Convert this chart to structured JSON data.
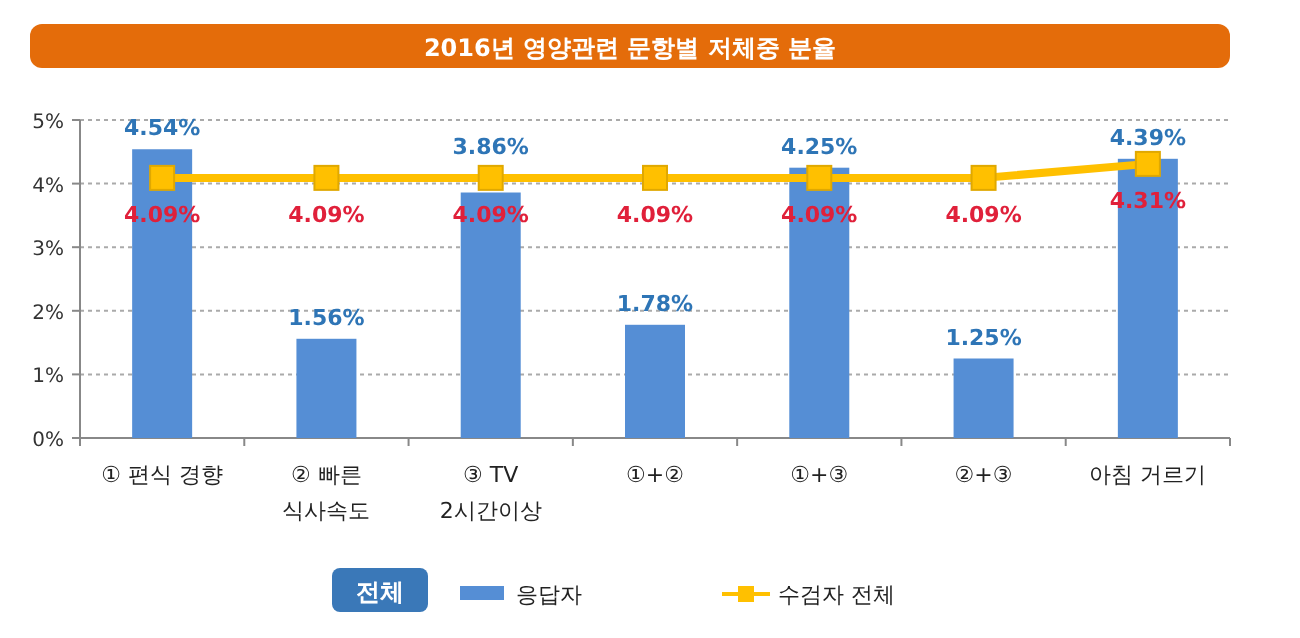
{
  "chart_data": {
    "type": "bar",
    "title": "2016년 영양관련 문항별 저체중 분율",
    "legend_title": "전체",
    "categories": [
      "① 편식 경향",
      "② 빠른\n식사속도",
      "③ TV\n2시간이상",
      "①+②",
      "①+③",
      "②+③",
      "아침 거르기"
    ],
    "series": [
      {
        "name": "응답자",
        "color": "#558ed5",
        "values": [
          4.54,
          1.56,
          3.86,
          1.78,
          4.25,
          1.25,
          4.39
        ],
        "value_labels": [
          "4.54%",
          "1.56%",
          "3.86%",
          "1.78%",
          "4.25%",
          "1.25%",
          "4.39%"
        ]
      },
      {
        "name": "수검자 전체",
        "type": "line",
        "color": "#ffc000",
        "values": [
          4.09,
          4.09,
          4.09,
          4.09,
          4.09,
          4.09,
          4.31
        ],
        "value_labels": [
          "4.09%",
          "4.09%",
          "4.09%",
          "4.09%",
          "4.09%",
          "4.09%",
          "4.31%"
        ]
      }
    ],
    "ylim": [
      0,
      5
    ],
    "yticks": [
      {
        "value": 0,
        "label": "0%"
      },
      {
        "value": 1,
        "label": "1%"
      },
      {
        "value": 2,
        "label": "2%"
      },
      {
        "value": 3,
        "label": "3%"
      },
      {
        "value": 4,
        "label": "4%"
      },
      {
        "value": 5,
        "label": "5%"
      }
    ],
    "grid": "y",
    "legend": "bottom",
    "marker": "square"
  }
}
